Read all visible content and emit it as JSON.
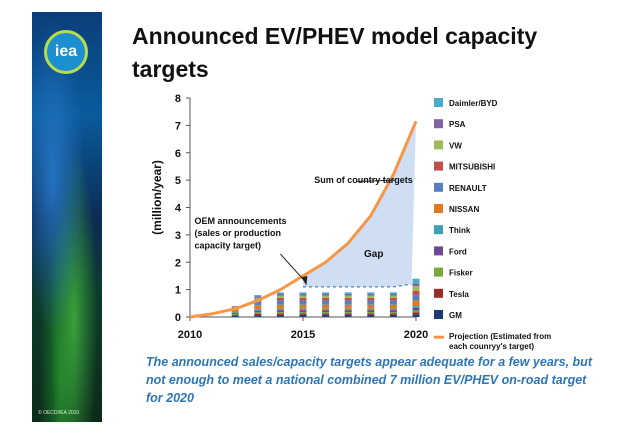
{
  "slide": {
    "title": "Announced EV/PHEV model capacity targets",
    "caption": "The announced sales/capacity targets appear adequate for a few years, but not enough to meet a national combined 7 million EV/PHEV on-road target for 2020",
    "logo_text": "iea",
    "copyright": "© OECD/IEA 2010"
  },
  "chart_data": {
    "type": "bar",
    "stacked": true,
    "ylabel": "(million/year)",
    "xlabel": "",
    "ylim": [
      0,
      8
    ],
    "xlim": [
      2010,
      2020
    ],
    "yticks": [
      0,
      1,
      2,
      3,
      4,
      5,
      6,
      7,
      8
    ],
    "xticks": [
      2010,
      2015,
      2020
    ],
    "categories": [
      2012,
      2013,
      2014,
      2015,
      2016,
      2017,
      2018,
      2019,
      2020
    ],
    "series": [
      {
        "name": "GM",
        "color": "#1f3a73",
        "values": [
          0.05,
          0.07,
          0.08,
          0.08,
          0.08,
          0.08,
          0.08,
          0.08,
          0.1
        ]
      },
      {
        "name": "Tesla",
        "color": "#9b2a2a",
        "values": [
          0.03,
          0.05,
          0.05,
          0.05,
          0.05,
          0.05,
          0.05,
          0.05,
          0.07
        ]
      },
      {
        "name": "Fisker",
        "color": "#76a83a",
        "values": [
          0.03,
          0.05,
          0.05,
          0.05,
          0.05,
          0.05,
          0.05,
          0.05,
          0.07
        ]
      },
      {
        "name": "Ford",
        "color": "#6b4a93",
        "values": [
          0.04,
          0.06,
          0.07,
          0.07,
          0.07,
          0.07,
          0.07,
          0.07,
          0.09
        ]
      },
      {
        "name": "Think",
        "color": "#3f9fb3",
        "values": [
          0.03,
          0.05,
          0.05,
          0.05,
          0.05,
          0.05,
          0.05,
          0.05,
          0.07
        ]
      },
      {
        "name": "NISSAN",
        "color": "#e07a20",
        "values": [
          0.08,
          0.15,
          0.15,
          0.15,
          0.15,
          0.15,
          0.15,
          0.15,
          0.2
        ]
      },
      {
        "name": "RENAULT",
        "color": "#5a7fc0",
        "values": [
          0.07,
          0.13,
          0.15,
          0.15,
          0.15,
          0.15,
          0.15,
          0.15,
          0.2
        ]
      },
      {
        "name": "MITSUBISHI",
        "color": "#c0504d",
        "values": [
          0.03,
          0.08,
          0.1,
          0.1,
          0.1,
          0.1,
          0.1,
          0.1,
          0.15
        ]
      },
      {
        "name": "VW",
        "color": "#9bbb59",
        "values": [
          0.02,
          0.06,
          0.08,
          0.08,
          0.08,
          0.08,
          0.08,
          0.08,
          0.18
        ]
      },
      {
        "name": "PSA",
        "color": "#8064a2",
        "values": [
          0.02,
          0.05,
          0.06,
          0.06,
          0.06,
          0.06,
          0.06,
          0.06,
          0.1
        ]
      },
      {
        "name": "Daimler/BYD",
        "color": "#4bacc6",
        "values": [
          0.0,
          0.05,
          0.06,
          0.06,
          0.06,
          0.06,
          0.06,
          0.06,
          0.17
        ]
      }
    ],
    "projection": {
      "name": "Projection (Estimated from each counryy's target)",
      "color": "#f79646",
      "x": [
        2010,
        2011,
        2012,
        2013,
        2014,
        2015,
        2016,
        2017,
        2018,
        2019,
        2020
      ],
      "y": [
        0.0,
        0.12,
        0.3,
        0.6,
        1.0,
        1.5,
        2.0,
        2.7,
        3.7,
        5.2,
        7.15
      ]
    },
    "gap_baseline": {
      "x": [
        2015,
        2016,
        2017,
        2018,
        2019,
        2019.8
      ],
      "y": [
        1.1,
        1.1,
        1.1,
        1.1,
        1.1,
        1.2
      ]
    },
    "annotations": [
      {
        "text": "Sum of  country targets",
        "x": 2015.5,
        "y": 4.9
      },
      {
        "text": "OEM announcements",
        "x": 2010.2,
        "y": 3.4
      },
      {
        "text": "(sales or production",
        "x": 2010.2,
        "y": 2.95
      },
      {
        "text": "capacity target)",
        "x": 2010.2,
        "y": 2.5
      },
      {
        "text": "Gap",
        "x": 2017.7,
        "y": 2.2
      }
    ],
    "legend_position": "right"
  }
}
